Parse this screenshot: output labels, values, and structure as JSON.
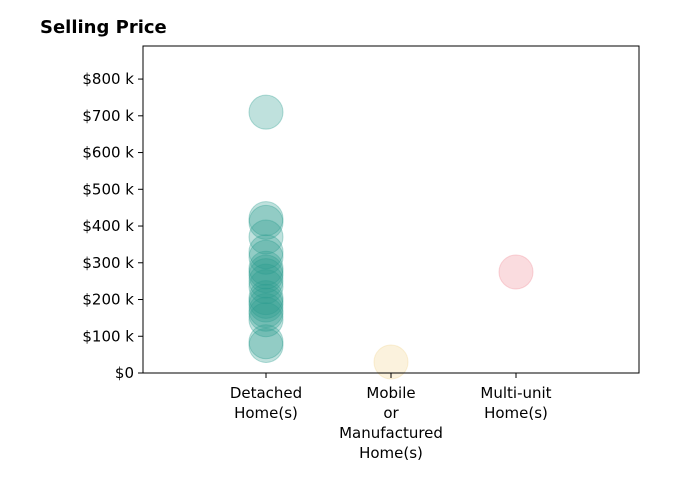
{
  "chart_data": {
    "type": "scatter",
    "title": "Selling Price",
    "xlabel": "",
    "ylabel": "",
    "categories": [
      [
        "Detached",
        "Home(s)"
      ],
      [
        "Mobile",
        "or",
        "Manufactured",
        "Home(s)"
      ],
      [
        "Multi-unit",
        "Home(s)"
      ]
    ],
    "ylim": [
      0,
      890000
    ],
    "yticks": [
      {
        "value": 0,
        "label": "$0"
      },
      {
        "value": 100000,
        "label": "$100 k"
      },
      {
        "value": 200000,
        "label": "$200 k"
      },
      {
        "value": 300000,
        "label": "$300 k"
      },
      {
        "value": 400000,
        "label": "$400 k"
      },
      {
        "value": 500000,
        "label": "$500 k"
      },
      {
        "value": 600000,
        "label": "$600 k"
      },
      {
        "value": 700000,
        "label": "$700 k"
      },
      {
        "value": 800000,
        "label": "$800 k"
      }
    ],
    "grid": false,
    "series": [
      {
        "category": 0,
        "color": "#2a9d8f",
        "values": [
          710000,
          420000,
          410000,
          370000,
          330000,
          315000,
          285000,
          275000,
          265000,
          250000,
          235000,
          205000,
          195000,
          185000,
          170000,
          160000,
          145000,
          85000,
          75000
        ]
      },
      {
        "category": 1,
        "color": "#f2d48f",
        "values": [
          30000
        ]
      },
      {
        "category": 2,
        "color": "#f08a94",
        "values": [
          275000
        ]
      }
    ]
  }
}
